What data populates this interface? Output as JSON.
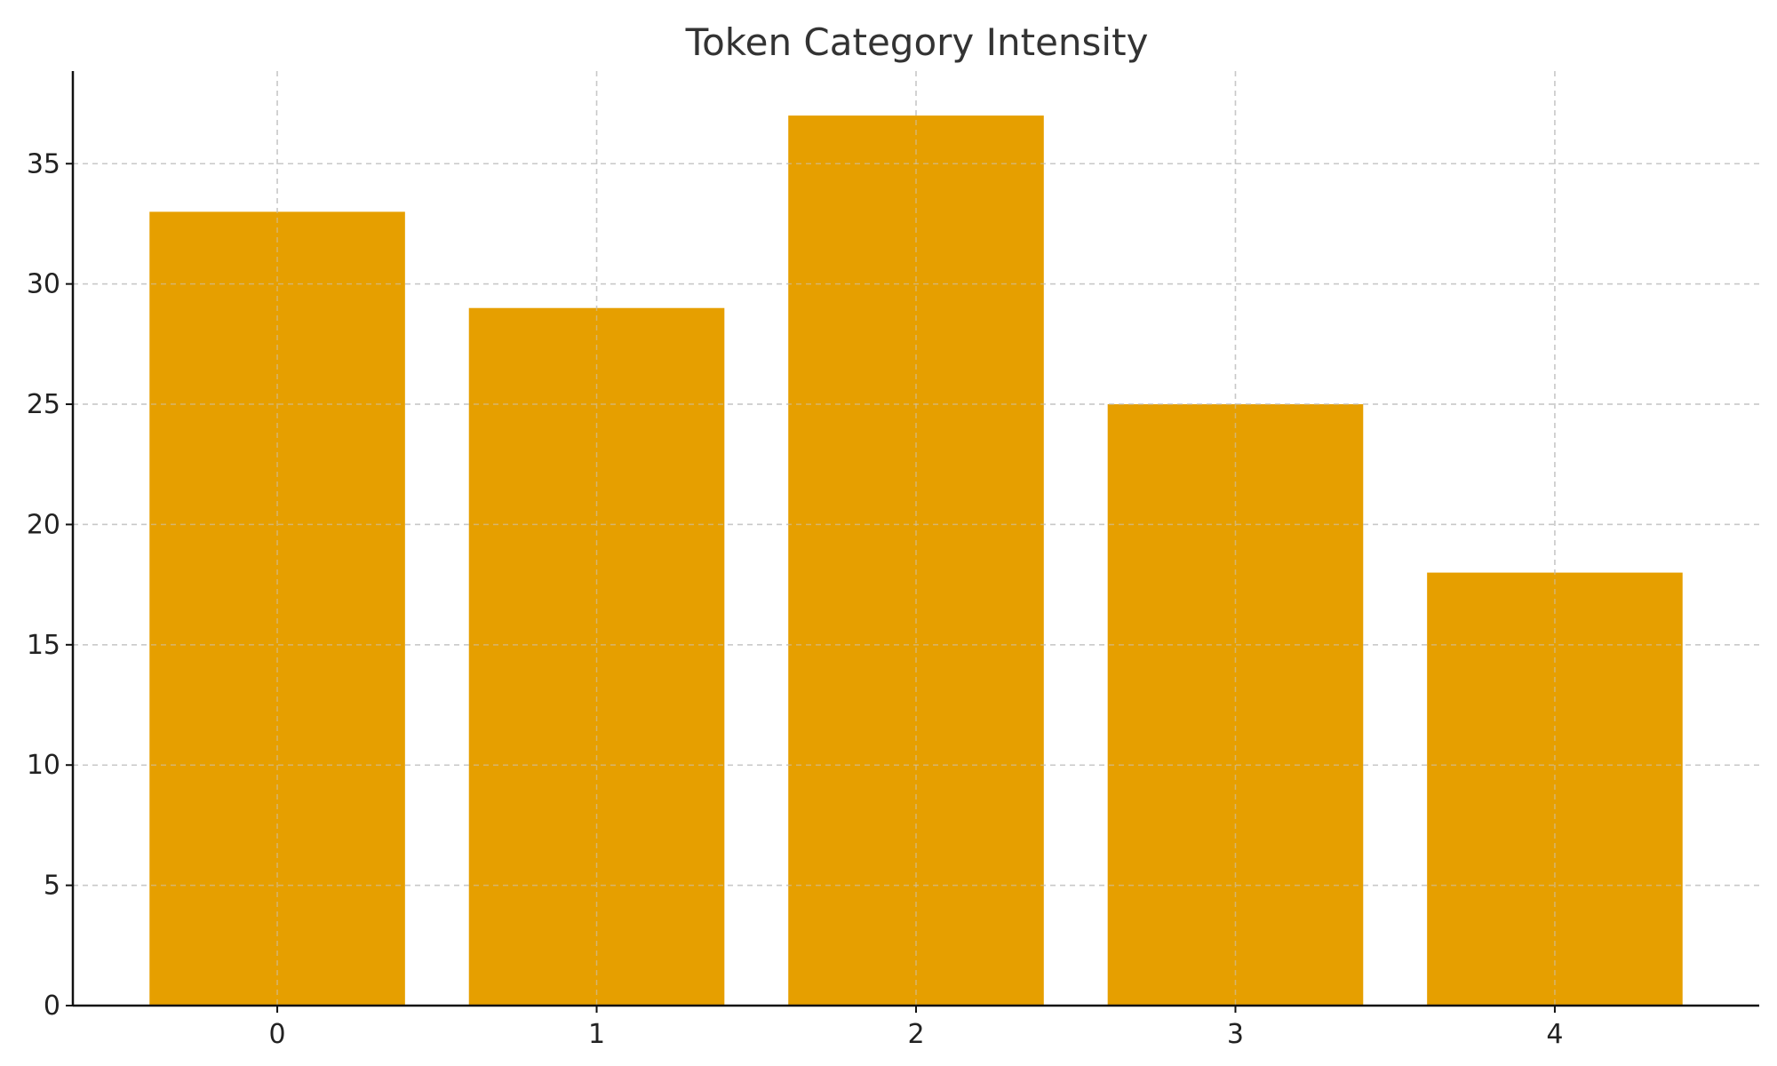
{
  "chart_data": {
    "type": "bar",
    "title": "Token Category Intensity",
    "xlabel": "",
    "ylabel": "",
    "categories": [
      "0",
      "1",
      "2",
      "3",
      "4"
    ],
    "values": [
      33,
      29,
      37,
      25,
      18
    ],
    "ylim": [
      0,
      38.85
    ],
    "yticks": [
      0,
      5,
      10,
      15,
      20,
      25,
      30,
      35
    ],
    "grid": true,
    "bar_color": "#E69F00",
    "grid_color": "#c8c8c8",
    "axis_color": "#111111"
  }
}
